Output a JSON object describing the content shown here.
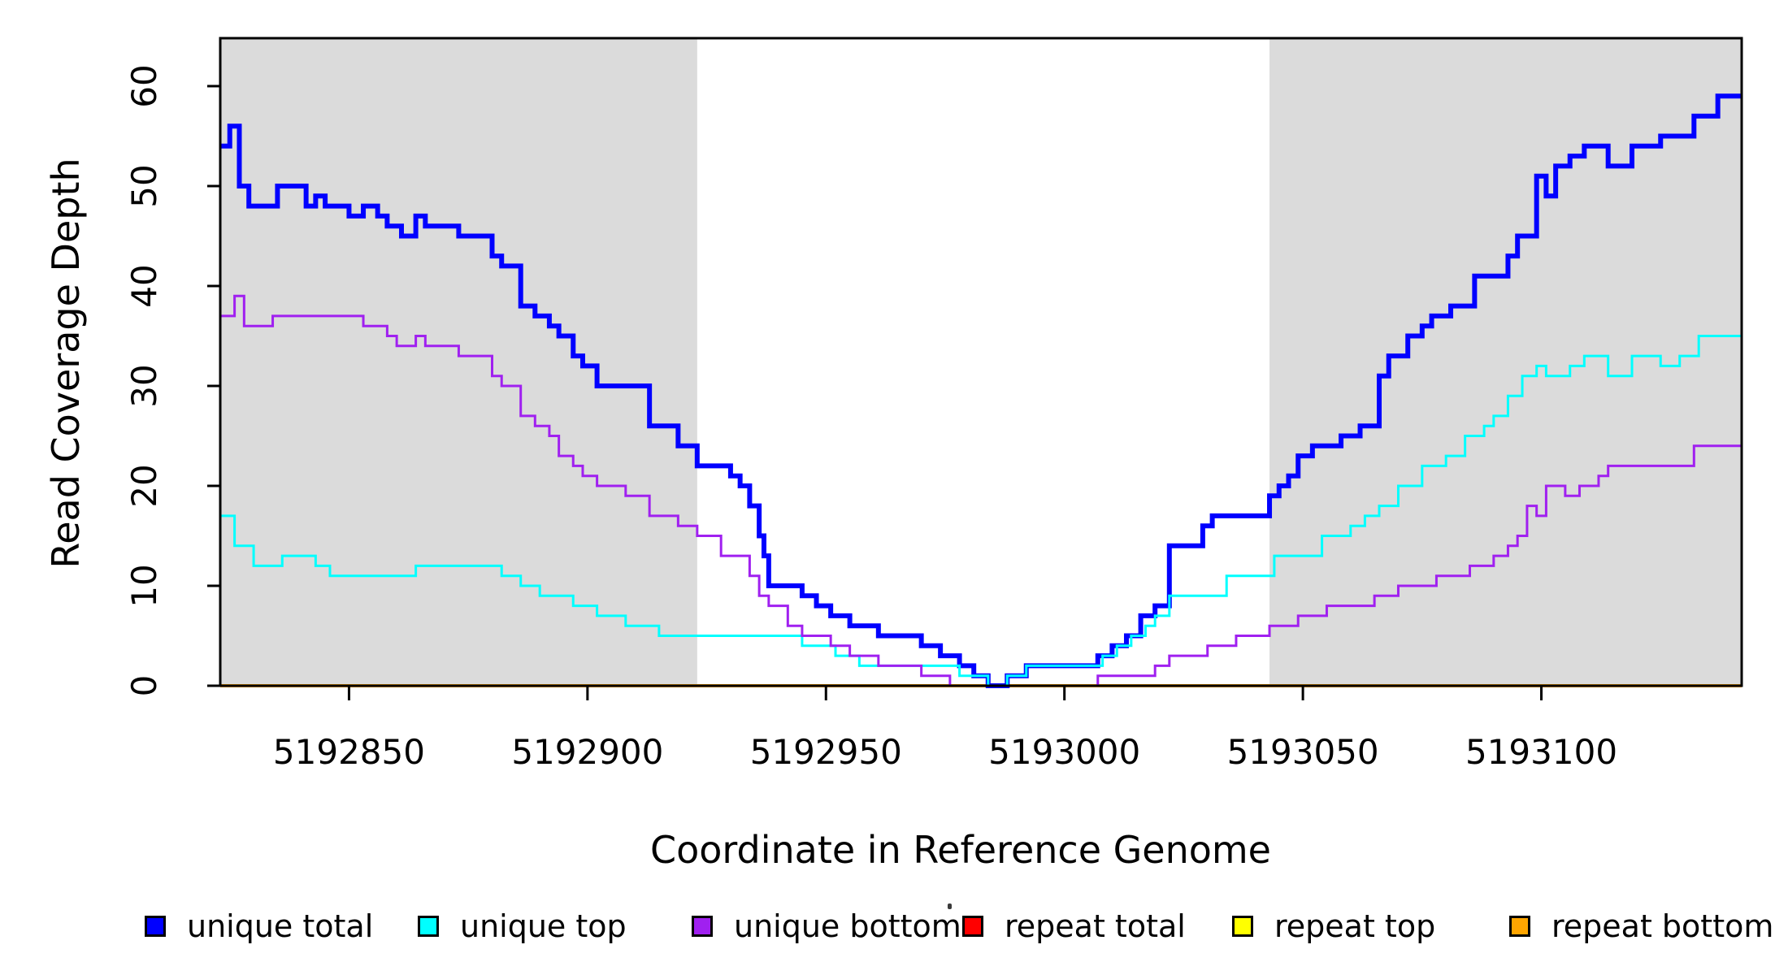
{
  "figure": {
    "x_axis_title": "Coordinate in Reference Genome",
    "y_axis_title": "Read Coverage Depth",
    "background": "#FFFFFF"
  },
  "chart_data": {
    "type": "line",
    "subtype": "step-post",
    "title": "",
    "xlabel": "Coordinate in Reference Genome",
    "ylabel": "Read Coverage Depth",
    "xlim": [
      5192823,
      5193142
    ],
    "ylim": [
      0,
      60
    ],
    "x_ticks": [
      5192850,
      5192900,
      5192950,
      5193000,
      5193050,
      5193100
    ],
    "y_ticks": [
      0,
      10,
      20,
      30,
      40,
      50,
      60
    ],
    "grid": false,
    "frame_color": "#000000",
    "shade_color": "#DBDBDB",
    "shaded_regions": [
      {
        "name": "left-masked-region",
        "x0": 5192823,
        "x1": 5192923
      },
      {
        "name": "right-masked-region",
        "x0": 5193043,
        "x1": 5193142
      }
    ],
    "legend_position": "bottom",
    "series": [
      {
        "name": "unique total",
        "color": "#0000FF",
        "width": 6,
        "points": [
          [
            5192823,
            54
          ],
          [
            5192825,
            56
          ],
          [
            5192827,
            50
          ],
          [
            5192829,
            48
          ],
          [
            5192835,
            50
          ],
          [
            5192841,
            48
          ],
          [
            5192843,
            49
          ],
          [
            5192845,
            48
          ],
          [
            5192850,
            47
          ],
          [
            5192853,
            48
          ],
          [
            5192856,
            47
          ],
          [
            5192858,
            46
          ],
          [
            5192861,
            45
          ],
          [
            5192864,
            47
          ],
          [
            5192866,
            46
          ],
          [
            5192873,
            45
          ],
          [
            5192880,
            43
          ],
          [
            5192882,
            42
          ],
          [
            5192886,
            38
          ],
          [
            5192889,
            37
          ],
          [
            5192892,
            36
          ],
          [
            5192894,
            35
          ],
          [
            5192897,
            33
          ],
          [
            5192899,
            32
          ],
          [
            5192902,
            30
          ],
          [
            5192913,
            26
          ],
          [
            5192919,
            24
          ],
          [
            5192923,
            22
          ],
          [
            5192930,
            21
          ],
          [
            5192932,
            20
          ],
          [
            5192934,
            18
          ],
          [
            5192936,
            15
          ],
          [
            5192937,
            13
          ],
          [
            5192938,
            10
          ],
          [
            5192945,
            9
          ],
          [
            5192948,
            8
          ],
          [
            5192951,
            7
          ],
          [
            5192955,
            6
          ],
          [
            5192961,
            5
          ],
          [
            5192970,
            4
          ],
          [
            5192974,
            3
          ],
          [
            5192978,
            2
          ],
          [
            5192981,
            1
          ],
          [
            5192984,
            0
          ],
          [
            5192988,
            1
          ],
          [
            5192992,
            2
          ],
          [
            5193007,
            3
          ],
          [
            5193010,
            4
          ],
          [
            5193013,
            5
          ],
          [
            5193016,
            7
          ],
          [
            5193019,
            8
          ],
          [
            5193022,
            14
          ],
          [
            5193029,
            16
          ],
          [
            5193031,
            17
          ],
          [
            5193043,
            19
          ],
          [
            5193045,
            20
          ],
          [
            5193047,
            21
          ],
          [
            5193049,
            23
          ],
          [
            5193052,
            24
          ],
          [
            5193058,
            25
          ],
          [
            5193062,
            26
          ],
          [
            5193066,
            31
          ],
          [
            5193068,
            33
          ],
          [
            5193072,
            35
          ],
          [
            5193075,
            36
          ],
          [
            5193077,
            37
          ],
          [
            5193081,
            38
          ],
          [
            5193086,
            41
          ],
          [
            5193093,
            43
          ],
          [
            5193095,
            45
          ],
          [
            5193099,
            51
          ],
          [
            5193101,
            49
          ],
          [
            5193103,
            52
          ],
          [
            5193106,
            53
          ],
          [
            5193109,
            54
          ],
          [
            5193114,
            52
          ],
          [
            5193119,
            54
          ],
          [
            5193125,
            55
          ],
          [
            5193132,
            57
          ],
          [
            5193137,
            59
          ],
          [
            5193142,
            59
          ]
        ]
      },
      {
        "name": "unique top",
        "color": "#00FFFF",
        "width": 3,
        "points": [
          [
            5192823,
            17
          ],
          [
            5192826,
            14
          ],
          [
            5192830,
            12
          ],
          [
            5192836,
            13
          ],
          [
            5192843,
            12
          ],
          [
            5192846,
            11
          ],
          [
            5192864,
            12
          ],
          [
            5192882,
            11
          ],
          [
            5192886,
            10
          ],
          [
            5192890,
            9
          ],
          [
            5192897,
            8
          ],
          [
            5192902,
            7
          ],
          [
            5192908,
            6
          ],
          [
            5192915,
            5
          ],
          [
            5192945,
            4
          ],
          [
            5192952,
            3
          ],
          [
            5192957,
            2
          ],
          [
            5192978,
            1
          ],
          [
            5192984,
            0
          ],
          [
            5192988,
            1
          ],
          [
            5192992,
            2
          ],
          [
            5193008,
            3
          ],
          [
            5193011,
            4
          ],
          [
            5193014,
            5
          ],
          [
            5193017,
            6
          ],
          [
            5193019,
            7
          ],
          [
            5193022,
            9
          ],
          [
            5193034,
            11
          ],
          [
            5193044,
            13
          ],
          [
            5193054,
            15
          ],
          [
            5193060,
            16
          ],
          [
            5193063,
            17
          ],
          [
            5193066,
            18
          ],
          [
            5193070,
            20
          ],
          [
            5193075,
            22
          ],
          [
            5193080,
            23
          ],
          [
            5193084,
            25
          ],
          [
            5193088,
            26
          ],
          [
            5193090,
            27
          ],
          [
            5193093,
            29
          ],
          [
            5193096,
            31
          ],
          [
            5193099,
            32
          ],
          [
            5193101,
            31
          ],
          [
            5193106,
            32
          ],
          [
            5193109,
            33
          ],
          [
            5193114,
            31
          ],
          [
            5193119,
            33
          ],
          [
            5193125,
            32
          ],
          [
            5193129,
            33
          ],
          [
            5193133,
            35
          ],
          [
            5193142,
            35
          ]
        ]
      },
      {
        "name": "unique bottom",
        "color": "#A020F0",
        "width": 3,
        "points": [
          [
            5192823,
            37
          ],
          [
            5192826,
            39
          ],
          [
            5192828,
            36
          ],
          [
            5192834,
            37
          ],
          [
            5192853,
            36
          ],
          [
            5192858,
            35
          ],
          [
            5192860,
            34
          ],
          [
            5192864,
            35
          ],
          [
            5192866,
            34
          ],
          [
            5192873,
            33
          ],
          [
            5192880,
            31
          ],
          [
            5192882,
            30
          ],
          [
            5192886,
            27
          ],
          [
            5192889,
            26
          ],
          [
            5192892,
            25
          ],
          [
            5192894,
            23
          ],
          [
            5192897,
            22
          ],
          [
            5192899,
            21
          ],
          [
            5192902,
            20
          ],
          [
            5192908,
            19
          ],
          [
            5192913,
            17
          ],
          [
            5192919,
            16
          ],
          [
            5192923,
            15
          ],
          [
            5192928,
            13
          ],
          [
            5192934,
            11
          ],
          [
            5192936,
            9
          ],
          [
            5192938,
            8
          ],
          [
            5192942,
            6
          ],
          [
            5192945,
            5
          ],
          [
            5192951,
            4
          ],
          [
            5192955,
            3
          ],
          [
            5192961,
            2
          ],
          [
            5192970,
            1
          ],
          [
            5192976,
            0
          ],
          [
            5193007,
            1
          ],
          [
            5193019,
            2
          ],
          [
            5193022,
            3
          ],
          [
            5193030,
            4
          ],
          [
            5193036,
            5
          ],
          [
            5193043,
            6
          ],
          [
            5193049,
            7
          ],
          [
            5193055,
            8
          ],
          [
            5193065,
            9
          ],
          [
            5193070,
            10
          ],
          [
            5193078,
            11
          ],
          [
            5193085,
            12
          ],
          [
            5193090,
            13
          ],
          [
            5193093,
            14
          ],
          [
            5193095,
            15
          ],
          [
            5193097,
            18
          ],
          [
            5193099,
            17
          ],
          [
            5193101,
            20
          ],
          [
            5193105,
            19
          ],
          [
            5193108,
            20
          ],
          [
            5193112,
            21
          ],
          [
            5193114,
            22
          ],
          [
            5193132,
            24
          ],
          [
            5193142,
            24
          ]
        ]
      },
      {
        "name": "repeat total",
        "color": "#FF0000",
        "width": 3,
        "points": [
          [
            5192823,
            0
          ],
          [
            5193142,
            0
          ]
        ]
      },
      {
        "name": "repeat top",
        "color": "#FFFF00",
        "width": 3,
        "points": [
          [
            5192823,
            0
          ],
          [
            5193142,
            0
          ]
        ]
      },
      {
        "name": "repeat bottom",
        "color": "#FFA500",
        "width": 4,
        "points": [
          [
            5192823,
            0
          ],
          [
            5193142,
            0
          ]
        ]
      }
    ],
    "legend": {
      "items": [
        {
          "label": "unique total",
          "color": "#0000FF"
        },
        {
          "label": "unique top",
          "color": "#00FFFF"
        },
        {
          "label": "unique bottom",
          "color": "#A020F0"
        },
        {
          "label": "repeat total",
          "color": "#FF0000"
        },
        {
          "label": "repeat top",
          "color": "#FFFF00"
        },
        {
          "label": "repeat bottom",
          "color": "#FFA500"
        }
      ]
    }
  }
}
